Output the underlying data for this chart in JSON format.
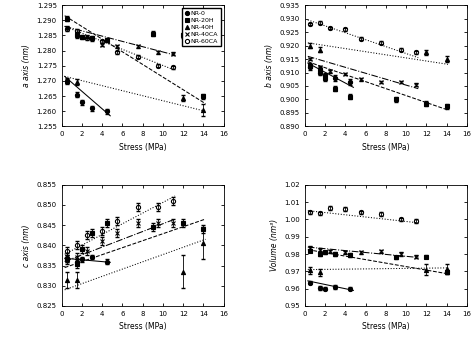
{
  "series_labels": [
    "NR-0",
    "NR-20H",
    "NR-40H",
    "NR-40CA",
    "NR-60CA"
  ],
  "markers": [
    "o",
    "s",
    "^",
    "x",
    "o"
  ],
  "colors": [
    "black",
    "black",
    "black",
    "black",
    "black"
  ],
  "mfc": [
    "black",
    "black",
    "black",
    "none",
    "none"
  ],
  "trend_ls": [
    "-",
    "--",
    ":",
    "-.",
    ":"
  ],
  "ax0": {
    "ylabel": "a axis (nm)",
    "xlabel": "Stress (MPa)",
    "ylim": [
      1.255,
      1.295
    ],
    "yticks": [
      1.255,
      1.26,
      1.265,
      1.27,
      1.275,
      1.28,
      1.285,
      1.29,
      1.295
    ],
    "xlim": [
      0,
      16
    ],
    "xticks": [
      0,
      2,
      4,
      6,
      8,
      10,
      12,
      14,
      16
    ],
    "data": {
      "NR-0": {
        "x": [
          0.5,
          1.5,
          2.0,
          3.0,
          4.5
        ],
        "y": [
          1.27,
          1.2655,
          1.263,
          1.261,
          1.26
        ],
        "yerr": [
          0.0008,
          0.0008,
          0.0008,
          0.0008,
          0.0008
        ]
      },
      "NR-20H": {
        "x": [
          0.5,
          1.5,
          2.0,
          3.0,
          4.5,
          9.0,
          12.0,
          14.0
        ],
        "y": [
          1.2905,
          1.285,
          1.2845,
          1.284,
          1.2835,
          1.2855,
          1.285,
          1.265
        ],
        "yerr": [
          0.0008,
          0.0008,
          0.0008,
          0.0008,
          0.0008,
          0.0008,
          0.0008,
          0.0008
        ]
      },
      "NR-40H": {
        "x": [
          0.5,
          1.5,
          12.0,
          14.0
        ],
        "y": [
          1.27,
          1.2695,
          1.2645,
          1.2605
        ],
        "yerr": [
          0.001,
          0.001,
          0.001,
          0.002
        ]
      },
      "NR-40CA": {
        "x": [
          0.5,
          1.5,
          2.5,
          4.0,
          5.5,
          7.5,
          9.5,
          11.0
        ],
        "y": [
          1.2875,
          1.2855,
          1.2845,
          1.282,
          1.2815,
          1.2815,
          1.2795,
          1.279
        ],
        "yerr": [
          0.0005,
          0.0005,
          0.0005,
          0.0005,
          0.0005,
          0.0005,
          0.0005,
          0.0005
        ]
      },
      "NR-60CA": {
        "x": [
          0.5,
          1.5,
          2.5,
          4.0,
          5.5,
          7.5,
          9.5,
          11.0
        ],
        "y": [
          1.287,
          1.2865,
          1.284,
          1.283,
          1.2795,
          1.278,
          1.275,
          1.2745
        ],
        "yerr": [
          0.0005,
          0.0005,
          0.0005,
          0.0005,
          0.0005,
          0.0005,
          0.0005,
          0.0005
        ]
      }
    },
    "trend": {
      "NR-0": {
        "x": [
          0.3,
          4.8
        ],
        "y": [
          1.2715,
          1.2585
        ]
      },
      "NR-20H": {
        "x": [
          0.3,
          14.2
        ],
        "y": [
          1.2915,
          1.2625
        ]
      },
      "NR-40H": {
        "x": [
          0.3,
          14.2
        ],
        "y": [
          1.2715,
          1.26
        ]
      },
      "NR-40CA": {
        "x": [
          0.3,
          11.2
        ],
        "y": [
          1.288,
          1.2785
        ]
      },
      "NR-60CA": {
        "x": [
          0.3,
          11.2
        ],
        "y": [
          1.288,
          1.2735
        ]
      }
    }
  },
  "ax1": {
    "ylabel": "b axis (nm)",
    "xlabel": "Stress (MPa)",
    "ylim": [
      0.89,
      0.935
    ],
    "yticks": [
      0.89,
      0.895,
      0.9,
      0.905,
      0.91,
      0.915,
      0.92,
      0.925,
      0.93,
      0.935
    ],
    "xlim": [
      0,
      16
    ],
    "xticks": [
      0,
      2,
      4,
      6,
      8,
      10,
      12,
      14,
      16
    ],
    "data": {
      "NR-0": {
        "x": [
          0.5,
          1.5,
          2.0,
          3.0,
          4.5
        ],
        "y": [
          0.912,
          0.91,
          0.909,
          0.908,
          0.9065
        ],
        "yerr": [
          0.001,
          0.001,
          0.001,
          0.001,
          0.001
        ]
      },
      "NR-20H": {
        "x": [
          0.5,
          1.5,
          2.0,
          3.0,
          4.5,
          9.0,
          12.0,
          14.0
        ],
        "y": [
          0.9125,
          0.911,
          0.908,
          0.904,
          0.901,
          0.9,
          0.8985,
          0.8975
        ],
        "yerr": [
          0.001,
          0.001,
          0.001,
          0.001,
          0.001,
          0.001,
          0.001,
          0.001
        ]
      },
      "NR-40H": {
        "x": [
          0.5,
          1.5,
          12.0,
          14.0
        ],
        "y": [
          0.92,
          0.9185,
          0.9175,
          0.915
        ],
        "yerr": [
          0.001,
          0.001,
          0.001,
          0.001
        ]
      },
      "NR-40CA": {
        "x": [
          0.5,
          1.5,
          2.5,
          4.0,
          5.5,
          7.5,
          9.5,
          11.0
        ],
        "y": [
          0.915,
          0.912,
          0.9105,
          0.9095,
          0.9075,
          0.9065,
          0.9065,
          0.9055
        ],
        "yerr": [
          0.0005,
          0.0005,
          0.0005,
          0.0005,
          0.0005,
          0.0005,
          0.0005,
          0.0005
        ]
      },
      "NR-60CA": {
        "x": [
          0.5,
          1.5,
          2.5,
          4.0,
          5.5,
          7.5,
          9.5,
          11.0
        ],
        "y": [
          0.928,
          0.9285,
          0.9265,
          0.926,
          0.9225,
          0.921,
          0.9185,
          0.9175
        ],
        "yerr": [
          0.0005,
          0.0005,
          0.0005,
          0.0005,
          0.0005,
          0.0005,
          0.0005,
          0.0005
        ]
      }
    },
    "trend": {
      "NR-0": {
        "x": [
          0.3,
          4.8
        ],
        "y": [
          0.9135,
          0.9045
        ]
      },
      "NR-20H": {
        "x": [
          0.3,
          14.2
        ],
        "y": [
          0.914,
          0.896
        ]
      },
      "NR-40H": {
        "x": [
          0.3,
          14.2
        ],
        "y": [
          0.921,
          0.913
        ]
      },
      "NR-40CA": {
        "x": [
          0.3,
          11.2
        ],
        "y": [
          0.916,
          0.904
        ]
      },
      "NR-60CA": {
        "x": [
          0.3,
          11.2
        ],
        "y": [
          0.9295,
          0.9155
        ]
      }
    }
  },
  "ax2": {
    "ylabel": "c axis (nm)",
    "xlabel": "Stress (MPa)",
    "ylim": [
      0.825,
      0.855
    ],
    "yticks": [
      0.825,
      0.83,
      0.835,
      0.84,
      0.845,
      0.85,
      0.855
    ],
    "xlim": [
      0,
      16
    ],
    "xticks": [
      0,
      2,
      4,
      6,
      8,
      10,
      12,
      14,
      16
    ],
    "data": {
      "NR-0": {
        "x": [
          0.5,
          1.5,
          2.0,
          3.0,
          4.5
        ],
        "y": [
          0.8365,
          0.836,
          0.8365,
          0.837,
          0.836
        ],
        "yerr": [
          0.0005,
          0.0005,
          0.0005,
          0.0005,
          0.0005
        ]
      },
      "NR-20H": {
        "x": [
          0.5,
          1.5,
          2.0,
          3.0,
          4.5,
          9.0,
          12.0,
          14.0
        ],
        "y": [
          0.8365,
          0.8355,
          0.839,
          0.843,
          0.8455,
          0.8445,
          0.8455,
          0.844
        ],
        "yerr": [
          0.001,
          0.001,
          0.001,
          0.001,
          0.001,
          0.001,
          0.001,
          0.001
        ]
      },
      "NR-40H": {
        "x": [
          0.5,
          1.5,
          12.0,
          14.0
        ],
        "y": [
          0.8315,
          0.8315,
          0.8335,
          0.8405
        ],
        "yerr": [
          0.002,
          0.002,
          0.004,
          0.004
        ]
      },
      "NR-40CA": {
        "x": [
          0.5,
          1.5,
          2.5,
          4.0,
          5.5,
          7.5,
          9.5,
          11.0
        ],
        "y": [
          0.837,
          0.837,
          0.8385,
          0.841,
          0.843,
          0.8455,
          0.8455,
          0.8455
        ],
        "yerr": [
          0.001,
          0.001,
          0.001,
          0.001,
          0.001,
          0.001,
          0.001,
          0.001
        ]
      },
      "NR-60CA": {
        "x": [
          0.5,
          1.5,
          2.5,
          4.0,
          5.5,
          7.5,
          9.5,
          11.0
        ],
        "y": [
          0.8385,
          0.84,
          0.8425,
          0.8435,
          0.846,
          0.8495,
          0.8495,
          0.851
        ],
        "yerr": [
          0.001,
          0.001,
          0.001,
          0.001,
          0.001,
          0.001,
          0.001,
          0.001
        ]
      }
    },
    "trend": {
      "NR-0": {
        "x": [
          0.3,
          4.8
        ],
        "y": [
          0.8368,
          0.8358
        ]
      },
      "NR-20H": {
        "x": [
          0.3,
          14.2
        ],
        "y": [
          0.8345,
          0.8465
        ]
      },
      "NR-40H": {
        "x": [
          0.3,
          14.2
        ],
        "y": [
          0.829,
          0.8415
        ]
      },
      "NR-40CA": {
        "x": [
          0.3,
          11.2
        ],
        "y": [
          0.836,
          0.8465
        ]
      },
      "NR-60CA": {
        "x": [
          0.3,
          11.2
        ],
        "y": [
          0.8378,
          0.8522
        ]
      }
    }
  },
  "ax3": {
    "ylabel": "Volume (nm³)",
    "xlabel": "Stress (MPa)",
    "ylim": [
      0.95,
      1.02
    ],
    "yticks": [
      0.95,
      0.96,
      0.97,
      0.98,
      0.99,
      1.0,
      1.01,
      1.02
    ],
    "xlim": [
      0,
      16
    ],
    "xticks": [
      0,
      2,
      4,
      6,
      8,
      10,
      12,
      14,
      16
    ],
    "data": {
      "NR-0": {
        "x": [
          0.5,
          1.5,
          2.0,
          3.0,
          4.5
        ],
        "y": [
          0.9635,
          0.9605,
          0.96,
          0.961,
          0.96
        ],
        "yerr": [
          0.001,
          0.001,
          0.001,
          0.001,
          0.001
        ]
      },
      "NR-20H": {
        "x": [
          0.5,
          1.5,
          2.0,
          3.0,
          4.5,
          9.0,
          12.0,
          14.0
        ],
        "y": [
          0.982,
          0.98,
          0.981,
          0.98,
          0.9795,
          0.978,
          0.9785,
          0.9695
        ],
        "yerr": [
          0.001,
          0.001,
          0.001,
          0.001,
          0.001,
          0.001,
          0.001,
          0.001
        ]
      },
      "NR-40H": {
        "x": [
          0.5,
          1.5,
          12.0,
          14.0
        ],
        "y": [
          0.9705,
          0.9695,
          0.971,
          0.9715
        ],
        "yerr": [
          0.002,
          0.002,
          0.003,
          0.003
        ]
      },
      "NR-40CA": {
        "x": [
          0.5,
          1.5,
          2.5,
          4.0,
          5.5,
          7.5,
          9.5,
          11.0
        ],
        "y": [
          0.9835,
          0.9825,
          0.9815,
          0.981,
          0.981,
          0.9815,
          0.98,
          0.9785
        ],
        "yerr": [
          0.001,
          0.001,
          0.001,
          0.001,
          0.001,
          0.001,
          0.001,
          0.001
        ]
      },
      "NR-60CA": {
        "x": [
          0.5,
          1.5,
          2.5,
          4.0,
          5.5,
          7.5,
          9.5,
          11.0
        ],
        "y": [
          1.004,
          1.0035,
          1.0065,
          1.006,
          1.004,
          1.003,
          1.0,
          0.999
        ],
        "yerr": [
          0.001,
          0.001,
          0.001,
          0.001,
          0.001,
          0.001,
          0.001,
          0.001
        ]
      }
    },
    "trend": {
      "NR-0": {
        "x": [
          0.3,
          4.8
        ],
        "y": [
          0.9645,
          0.959
        ]
      },
      "NR-20H": {
        "x": [
          0.3,
          14.2
        ],
        "y": [
          0.9825,
          0.9685
        ]
      },
      "NR-40H": {
        "x": [
          0.3,
          14.2
        ],
        "y": [
          0.971,
          0.972
        ]
      },
      "NR-40CA": {
        "x": [
          0.3,
          11.2
        ],
        "y": [
          0.984,
          0.978
        ]
      },
      "NR-60CA": {
        "x": [
          0.3,
          11.2
        ],
        "y": [
          1.005,
          0.998
        ]
      }
    }
  }
}
